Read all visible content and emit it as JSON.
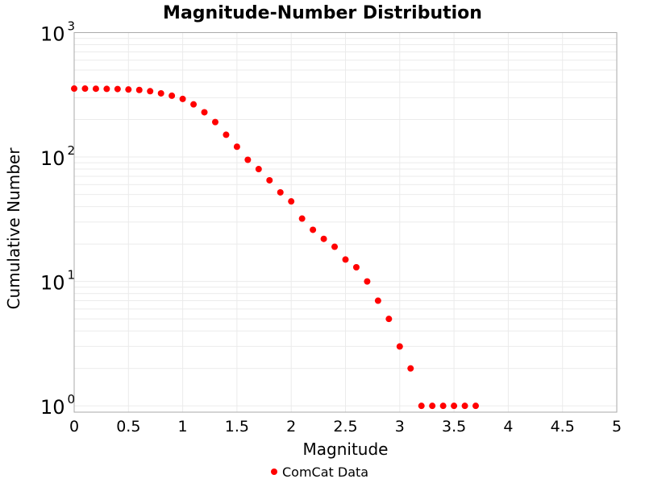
{
  "chart_data": {
    "type": "scatter",
    "title": "Magnitude-Number Distribution",
    "xlabel": "Magnitude",
    "ylabel": "Cumulative Number",
    "xlim": [
      0,
      5
    ],
    "ylim": [
      0.89,
      1000
    ],
    "yscale": "log",
    "grid": true,
    "legend_position": "bottom",
    "x_ticks": [
      "0",
      "0.5",
      "1",
      "1.5",
      "2",
      "2.5",
      "3",
      "3.5",
      "4",
      "4.5",
      "5"
    ],
    "y_ticks": [
      {
        "base": "10",
        "exp": "0"
      },
      {
        "base": "10",
        "exp": "1"
      },
      {
        "base": "10",
        "exp": "2"
      },
      {
        "base": "10",
        "exp": "3"
      }
    ],
    "series": [
      {
        "name": "ComCat Data",
        "color": "#ff0000",
        "x": [
          0.0,
          0.1,
          0.2,
          0.3,
          0.4,
          0.5,
          0.6,
          0.7,
          0.8,
          0.9,
          1.0,
          1.1,
          1.2,
          1.3,
          1.4,
          1.5,
          1.6,
          1.7,
          1.8,
          1.9,
          2.0,
          2.1,
          2.2,
          2.3,
          2.4,
          2.5,
          2.6,
          2.7,
          2.8,
          2.9,
          3.0,
          3.1,
          3.2,
          3.3,
          3.4,
          3.5,
          3.6,
          3.7
        ],
        "y": [
          355,
          355,
          354,
          353,
          352,
          349,
          346,
          338,
          325,
          311,
          293,
          265,
          229,
          191,
          151,
          121,
          95,
          80,
          65,
          52,
          44,
          32,
          26,
          22,
          19,
          15,
          13,
          10,
          7,
          5,
          3,
          2,
          1,
          1,
          1,
          1,
          1,
          1
        ]
      }
    ]
  }
}
